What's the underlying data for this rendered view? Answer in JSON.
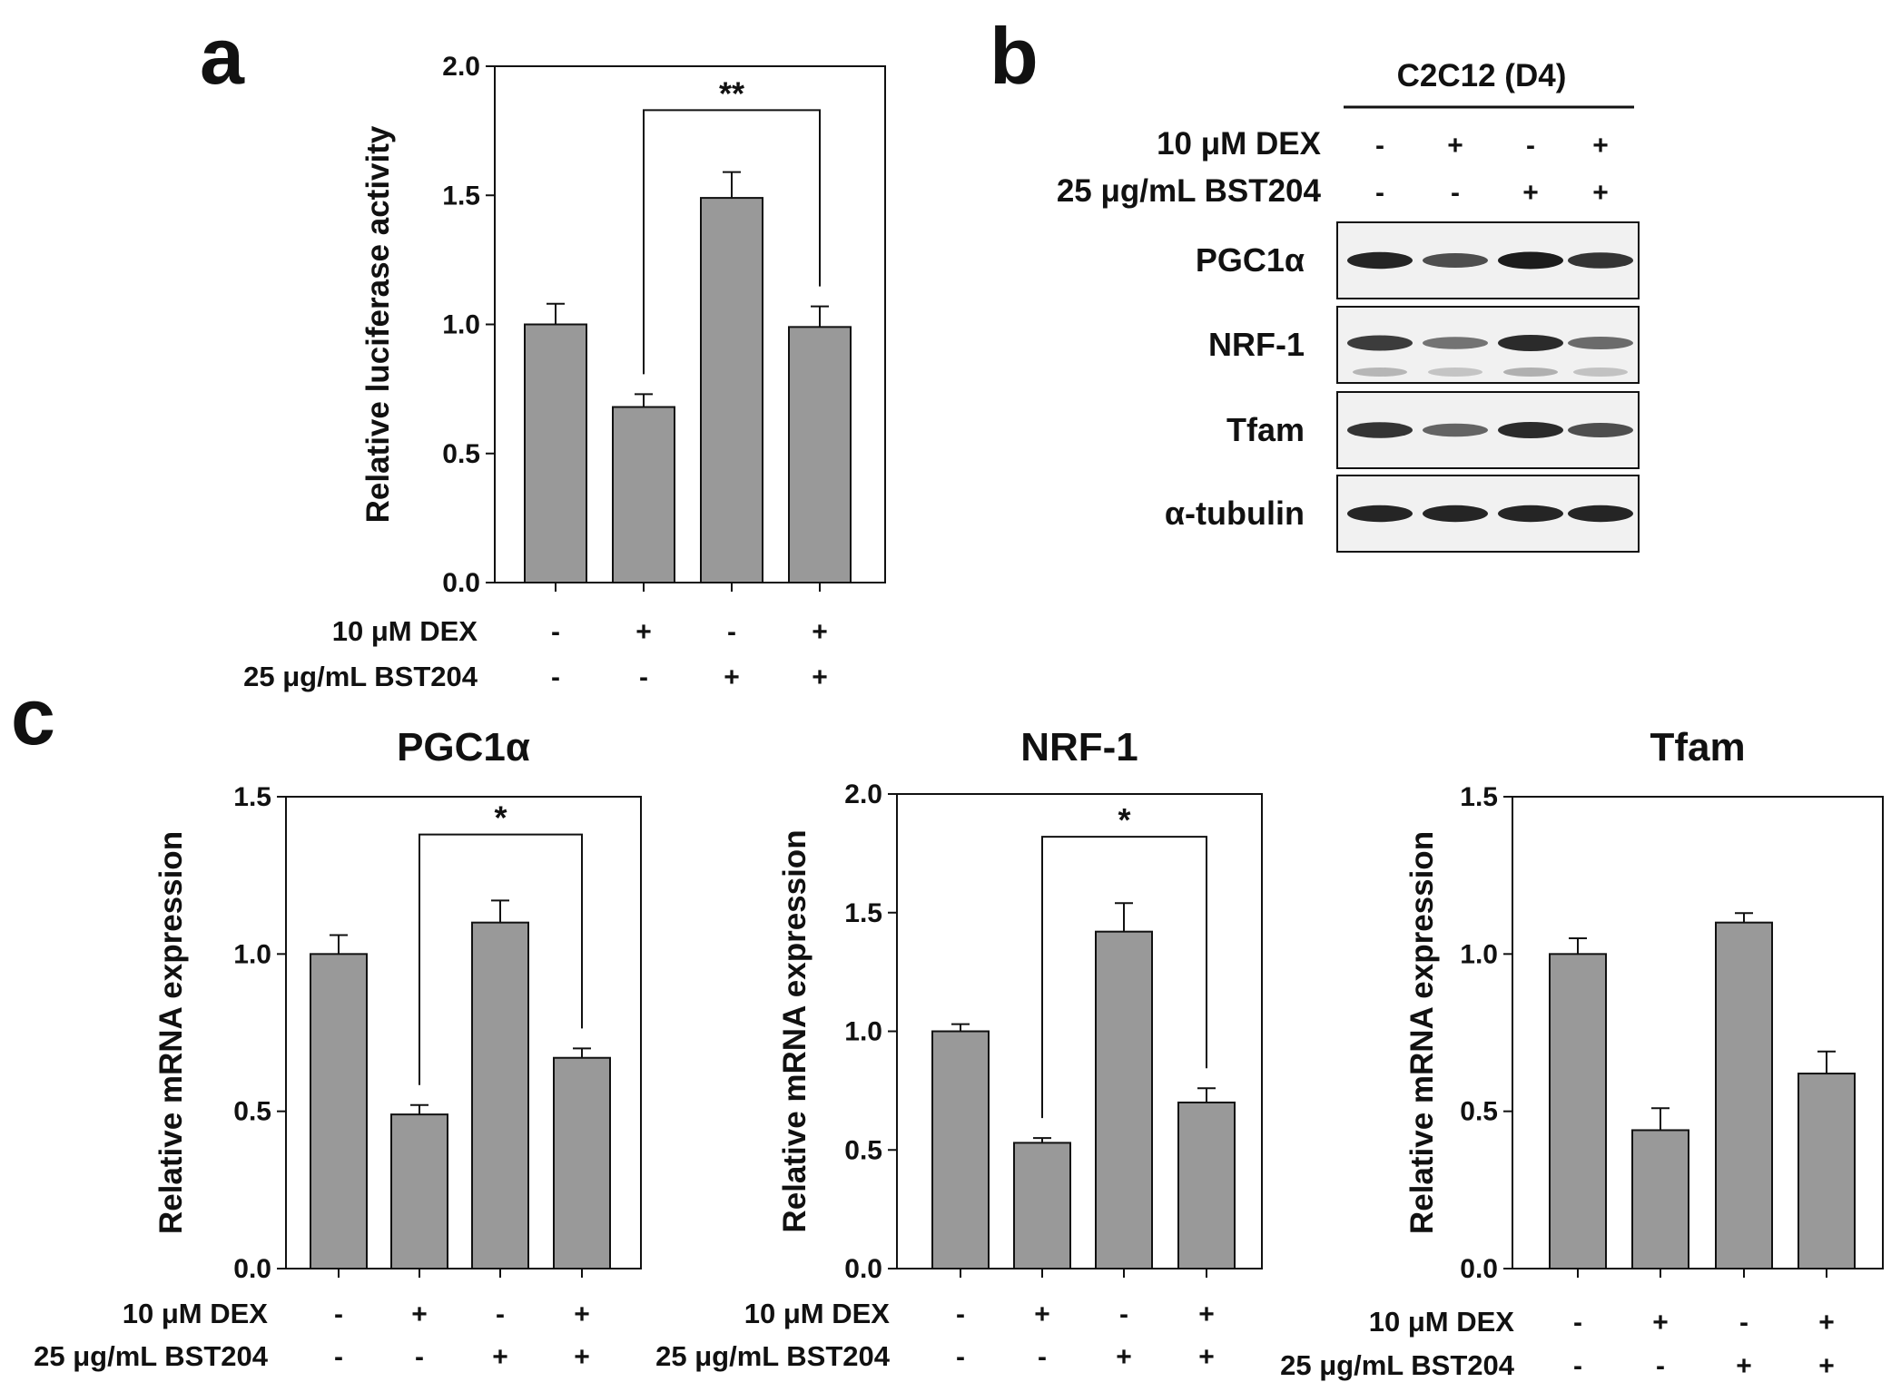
{
  "panel_labels": {
    "a": "a",
    "b": "b",
    "c": "c"
  },
  "colors": {
    "bar": "#999999",
    "axis": "#111111",
    "band": "#1c1c1c",
    "blot_bg": "#f1f1f1"
  },
  "treatments": {
    "dex_label": "10 μM DEX",
    "bst_label": "25 μg/mL BST204",
    "dex": [
      "-",
      "+",
      "-",
      "+"
    ],
    "bst": [
      "-",
      "-",
      "+",
      "+"
    ]
  },
  "chart_data": [
    {
      "id": "a",
      "type": "bar",
      "title": "",
      "ylabel": "Relative luciferase activity",
      "xlabel": "",
      "ylim": [
        0,
        2
      ],
      "yticks": [
        0.0,
        0.5,
        1.0,
        1.5,
        2.0
      ],
      "ytick_labels": [
        "0.0",
        "0.5",
        "1.0",
        "1.5",
        "2.0"
      ],
      "categories": [
        "-/-",
        "+/-",
        "-/+",
        "+/+"
      ],
      "values": [
        1.0,
        0.68,
        1.49,
        0.99
      ],
      "errors": [
        0.08,
        0.05,
        0.1,
        0.08
      ],
      "significance": {
        "from": 1,
        "to": 3,
        "label": "**",
        "y": 1.83
      }
    },
    {
      "id": "c1",
      "type": "bar",
      "title": "PGC1α",
      "ylabel": "Relative mRNA expression",
      "xlabel": "",
      "ylim": [
        0,
        1.5
      ],
      "yticks": [
        0.0,
        0.5,
        1.0,
        1.5
      ],
      "ytick_labels": [
        "0.0",
        "0.5",
        "1.0",
        "1.5"
      ],
      "categories": [
        "-/-",
        "+/-",
        "-/+",
        "+/+"
      ],
      "values": [
        1.0,
        0.49,
        1.1,
        0.67
      ],
      "errors": [
        0.06,
        0.03,
        0.07,
        0.03
      ],
      "significance": {
        "from": 1,
        "to": 3,
        "label": "*",
        "y": 1.38
      }
    },
    {
      "id": "c2",
      "type": "bar",
      "title": "NRF-1",
      "ylabel": "Relative mRNA expression",
      "xlabel": "",
      "ylim": [
        0,
        2
      ],
      "yticks": [
        0.0,
        0.5,
        1.0,
        1.5,
        2.0
      ],
      "ytick_labels": [
        "0.0",
        "0.5",
        "1.0",
        "1.5",
        "2.0"
      ],
      "categories": [
        "-/-",
        "+/-",
        "-/+",
        "+/+"
      ],
      "values": [
        1.0,
        0.53,
        1.42,
        0.7
      ],
      "errors": [
        0.03,
        0.02,
        0.12,
        0.06
      ],
      "significance": {
        "from": 1,
        "to": 3,
        "label": "*",
        "y": 1.82
      }
    },
    {
      "id": "c3",
      "type": "bar",
      "title": "Tfam",
      "ylabel": "Relative mRNA expression",
      "xlabel": "",
      "ylim": [
        0,
        1.5
      ],
      "yticks": [
        0.0,
        0.5,
        1.0,
        1.5
      ],
      "ytick_labels": [
        "0.0",
        "0.5",
        "1.0",
        "1.5"
      ],
      "categories": [
        "-/-",
        "+/-",
        "-/+",
        "+/+"
      ],
      "values": [
        1.0,
        0.44,
        1.1,
        0.62
      ],
      "errors": [
        0.05,
        0.07,
        0.03,
        0.07
      ],
      "significance": null
    }
  ],
  "blot": {
    "header": "C2C12 (D4)",
    "dex_label": "10 μM DEX",
    "bst_label": "25 μg/mL BST204",
    "dex": [
      "-",
      "+",
      "-",
      "+"
    ],
    "bst": [
      "-",
      "-",
      "+",
      "+"
    ],
    "rows": [
      {
        "label": "PGC1α",
        "band_intensity": [
          0.95,
          0.7,
          1.0,
          0.85
        ]
      },
      {
        "label": "NRF-1",
        "band_intensity": [
          0.8,
          0.45,
          0.9,
          0.5
        ]
      },
      {
        "label": "Tfam",
        "band_intensity": [
          0.85,
          0.55,
          0.9,
          0.7
        ]
      },
      {
        "label": "α-tubulin",
        "band_intensity": [
          0.95,
          0.95,
          0.95,
          0.95
        ]
      }
    ]
  }
}
